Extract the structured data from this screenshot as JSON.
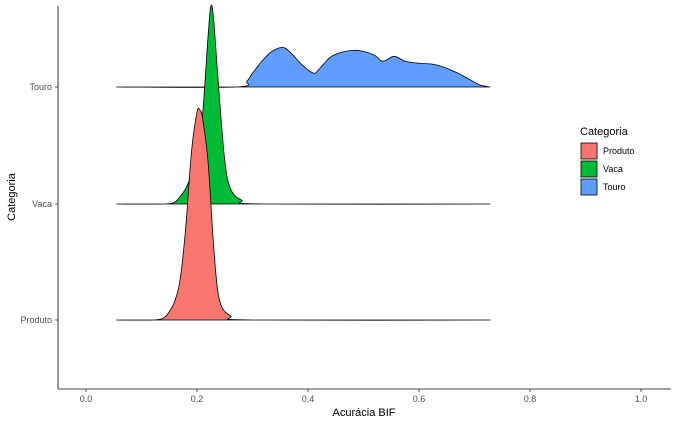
{
  "chart_data": {
    "type": "area",
    "subtype": "ridgeline-density",
    "xlabel": "Acurácia BIF",
    "ylabel": "Categoria",
    "xlim": [
      0.0,
      1.0
    ],
    "x_ticks": [
      0.0,
      0.2,
      0.4,
      0.6,
      0.8,
      1.0
    ],
    "x_tick_labels": [
      "0.0",
      "0.2",
      "0.4",
      "0.6",
      "0.8",
      "1.0"
    ],
    "categories": [
      "Produto",
      "Vaca",
      "Touro"
    ],
    "grid": false,
    "legend": {
      "title": "Categoria",
      "position": "right",
      "entries": [
        {
          "label": "Produto",
          "color": "#F8766D"
        },
        {
          "label": "Vaca",
          "color": "#00BA38"
        },
        {
          "label": "Touro",
          "color": "#619CFF"
        }
      ]
    },
    "series": [
      {
        "name": "Produto",
        "color": "#F8766D",
        "x_range": [
          0.055,
          0.728
        ],
        "x": [
          0.055,
          0.12,
          0.14,
          0.15,
          0.16,
          0.17,
          0.18,
          0.19,
          0.2,
          0.205,
          0.21,
          0.22,
          0.23,
          0.24,
          0.26,
          0.3,
          0.728
        ],
        "density": [
          0.0,
          0.0,
          0.01,
          0.04,
          0.09,
          0.2,
          0.45,
          0.8,
          0.99,
          1.0,
          0.96,
          0.75,
          0.35,
          0.1,
          0.02,
          0.0,
          0.0
        ]
      },
      {
        "name": "Vaca",
        "color": "#00BA38",
        "x_range": [
          0.055,
          0.728
        ],
        "x": [
          0.055,
          0.14,
          0.16,
          0.17,
          0.18,
          0.19,
          0.2,
          0.21,
          0.22,
          0.225,
          0.23,
          0.24,
          0.25,
          0.26,
          0.28,
          0.32,
          0.728
        ],
        "density": [
          0.0,
          0.0,
          0.01,
          0.04,
          0.08,
          0.15,
          0.25,
          0.45,
          0.85,
          1.0,
          0.93,
          0.55,
          0.22,
          0.08,
          0.02,
          0.0,
          0.0
        ]
      },
      {
        "name": "Touro",
        "color": "#619CFF",
        "x_range": [
          0.055,
          0.728
        ],
        "x": [
          0.055,
          0.27,
          0.29,
          0.3,
          0.32,
          0.335,
          0.355,
          0.37,
          0.39,
          0.41,
          0.42,
          0.44,
          0.46,
          0.48,
          0.5,
          0.52,
          0.535,
          0.555,
          0.575,
          0.6,
          0.625,
          0.645,
          0.67,
          0.69,
          0.71,
          0.728
        ],
        "density": [
          0.0,
          0.0,
          0.03,
          0.07,
          0.14,
          0.18,
          0.2,
          0.17,
          0.11,
          0.07,
          0.09,
          0.15,
          0.175,
          0.185,
          0.18,
          0.16,
          0.13,
          0.155,
          0.13,
          0.12,
          0.115,
          0.1,
          0.07,
          0.04,
          0.01,
          0.0
        ]
      }
    ]
  }
}
